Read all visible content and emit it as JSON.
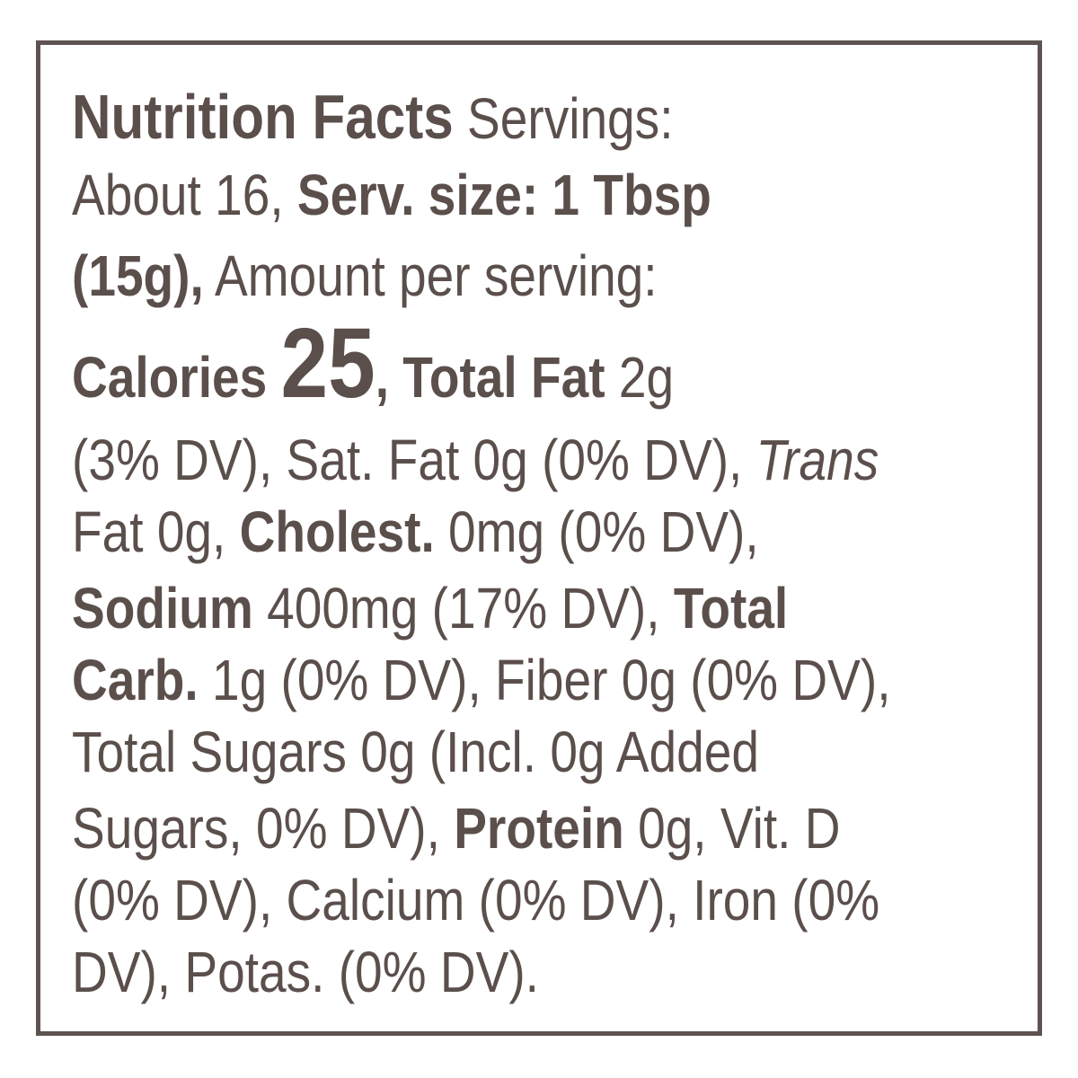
{
  "title": "Nutrition Facts",
  "lines": [
    [
      "Nutrition Facts",
      " Servings:"
    ],
    [
      "About 16, ",
      "Serv. size: 1 Tbsp"
    ],
    [
      "(15g),",
      " Amount per serving:"
    ],
    [
      "Calories ",
      "25",
      ", Total Fat",
      " 2g"
    ],
    [
      "(3% DV), Sat. Fat 0g (0% DV), ",
      "Trans"
    ],
    [
      "Fat 0g, ",
      "Cholest.",
      " 0mg (0% DV),"
    ],
    [
      "Sodium",
      " 400mg (17% DV), ",
      "Total"
    ],
    [
      "Carb.",
      " 1g (0% DV), Fiber 0g (0% DV),"
    ],
    [
      "Total Sugars 0g (Incl. 0g Added"
    ],
    [
      "Sugars, 0% DV), ",
      "Protein",
      " 0g, Vit. D"
    ],
    [
      "(0% DV), Calcium (0% DV), Iron (0%"
    ],
    [
      "DV), Potas. (0% DV)."
    ]
  ]
}
